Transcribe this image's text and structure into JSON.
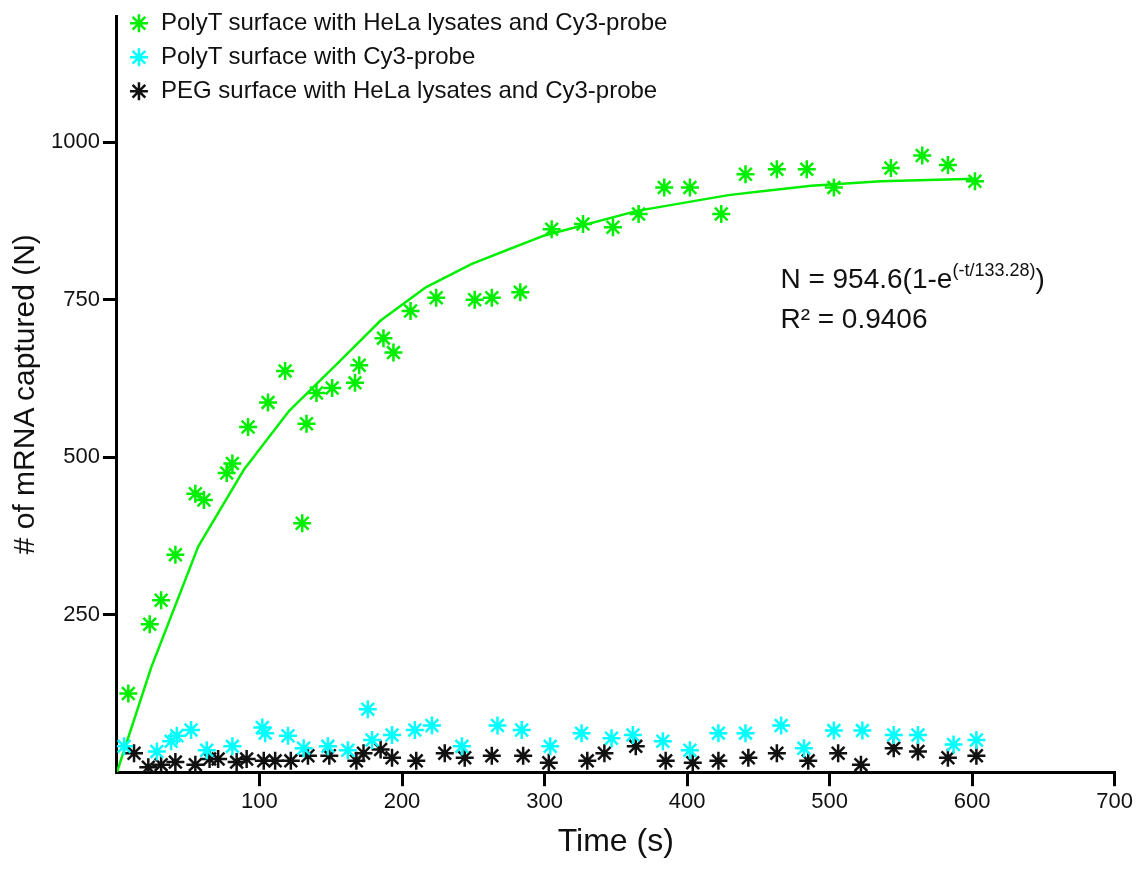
{
  "chart_data": {
    "type": "scatter",
    "xlabel": "Time (s)",
    "ylabel": "# of mRNA captured (N)",
    "xlim": [
      0,
      700
    ],
    "xticks": [
      100,
      200,
      300,
      400,
      500,
      600,
      700
    ],
    "ylim": [
      0,
      1200
    ],
    "yticks": [
      250,
      500,
      750,
      1000
    ],
    "legend": "top left",
    "marker": "cross",
    "annotations": [
      "N = 954.6(1-e$^{(-t/133.28)}$)",
      "R² = 0.9406"
    ],
    "series": [
      {
        "name": "PolyT surface with HeLa lysates and Cy3-probe",
        "color": "#00ee00",
        "x": [
          8,
          23,
          31,
          41,
          55,
          61,
          77,
          81,
          92,
          106,
          118,
          130,
          133,
          140,
          151,
          167,
          170,
          187,
          194,
          206,
          224,
          251,
          263,
          283,
          305,
          327,
          348,
          366,
          384,
          402,
          424,
          441,
          463,
          484,
          503,
          543,
          565,
          583,
          602
        ],
        "values": [
          125,
          235,
          273,
          345,
          442,
          432,
          475,
          490,
          548,
          587,
          637,
          395,
          553,
          602,
          610,
          618,
          646,
          689,
          666,
          732,
          753,
          750,
          753,
          762,
          862,
          870,
          865,
          886,
          928,
          928,
          886,
          949,
          957,
          957,
          928,
          959,
          979,
          964,
          938
        ]
      },
      {
        "name": "PolyT surface with Cy3-probe",
        "color": "#00ffff",
        "x": [
          5,
          28,
          38,
          42,
          52,
          63,
          81,
          102,
          104,
          120,
          131,
          148,
          162,
          176,
          179,
          193,
          209,
          221,
          242,
          267,
          284,
          304,
          326,
          347,
          362,
          383,
          402,
          422,
          441,
          466,
          482,
          503,
          523,
          545,
          562,
          587,
          603
        ],
        "values": [
          41,
          33,
          49,
          58,
          67,
          35,
          41,
          71,
          62,
          58,
          38,
          41,
          35,
          100,
          51,
          59,
          67,
          74,
          41,
          74,
          67,
          41,
          62,
          54,
          59,
          49,
          35,
          62,
          62,
          74,
          38,
          66,
          66,
          59,
          59,
          44,
          51
        ]
      },
      {
        "name": "PEG surface with HeLa lysates and Cy3-probe",
        "color": "#111111",
        "x": [
          12,
          22,
          31,
          41,
          55,
          65,
          71,
          84,
          91,
          103,
          111,
          122,
          134,
          149,
          168,
          173,
          185,
          193,
          210,
          230,
          244,
          263,
          285,
          303,
          330,
          342,
          364,
          385,
          404,
          422,
          443,
          463,
          485,
          506,
          522,
          545,
          562,
          583,
          603
        ],
        "values": [
          30,
          8,
          12,
          16,
          12,
          21,
          21,
          16,
          21,
          18,
          18,
          18,
          26,
          26,
          18,
          30,
          36,
          23,
          18,
          30,
          23,
          26,
          26,
          15,
          18,
          30,
          41,
          18,
          15,
          18,
          23,
          30,
          18,
          30,
          12,
          38,
          33,
          23,
          26
        ]
      },
      {
        "type": "line",
        "marker": "none",
        "color": "#00ee00",
        "x": [
          0,
          24,
          57,
          89,
          121,
          153,
          185,
          217,
          249,
          300,
          365,
          429,
          487,
          536,
          602
        ],
        "values": [
          0,
          166,
          358,
          480,
          574,
          645,
          717,
          770,
          807,
          852,
          891,
          916,
          931,
          938,
          942
        ]
      }
    ]
  }
}
